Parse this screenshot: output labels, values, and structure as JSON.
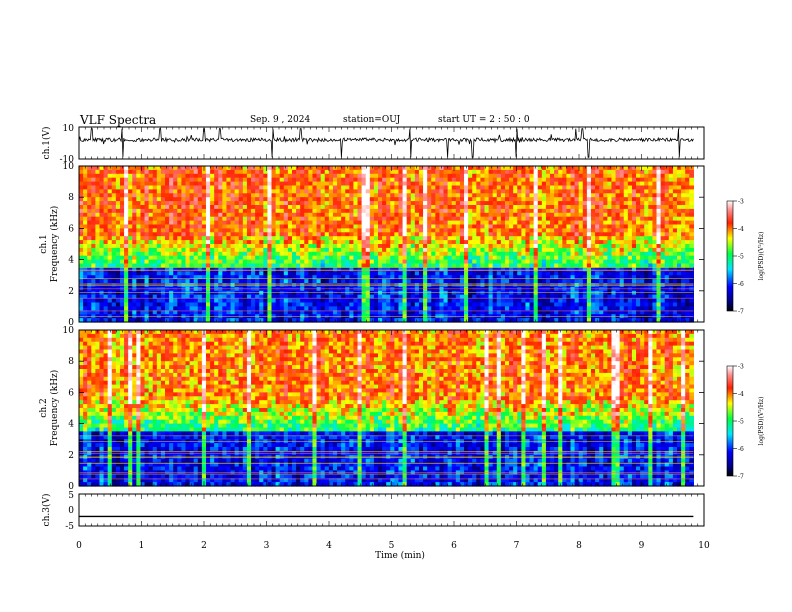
{
  "header": {
    "title": "VLF Spectra",
    "date": "Sep. 9  , 2024",
    "station": "station=OUJ",
    "start": "start  UT =   2 : 50 : 0"
  },
  "chart_data": [
    {
      "type": "line",
      "id": "ch1-waveform",
      "ylabel": "ch.1(V)",
      "ylim": [
        -10,
        10
      ],
      "yticks": [
        "10",
        "-10"
      ],
      "xlim": [
        0,
        10
      ],
      "baseline": 2,
      "spikes_at_min": [
        0.2,
        0.7,
        1.3,
        2.0,
        2.25,
        3.1,
        3.55,
        4.2,
        5.3,
        5.9,
        6.3,
        7.0,
        7.95,
        8.05,
        8.15,
        9.6
      ]
    },
    {
      "type": "heatmap",
      "id": "ch1-spectrogram",
      "ylabel": "ch.1\nFrequency (kHz)",
      "ylim": [
        0,
        10
      ],
      "yticks": [
        "0",
        "2",
        "4",
        "6",
        "8",
        "10"
      ],
      "xlim": [
        0,
        10
      ],
      "data_end_min": 9.83,
      "colorbar": {
        "label": "log(PSD)(V²/Hz)",
        "range": [
          -7,
          -3
        ],
        "ticks": [
          "-3",
          "-4",
          "-5",
          "-6",
          "-7"
        ]
      }
    },
    {
      "type": "heatmap",
      "id": "ch2-spectrogram",
      "ylabel": "ch.2\nFrequency (kHz)",
      "ylim": [
        0,
        10
      ],
      "yticks": [
        "0",
        "2",
        "4",
        "6",
        "8",
        "10"
      ],
      "xlim": [
        0,
        10
      ],
      "data_end_min": 9.83,
      "colorbar": {
        "label": "log(PSD)(V²/Hz)",
        "range": [
          -7,
          -3
        ],
        "ticks": [
          "-3",
          "-4",
          "-5",
          "-6",
          "-7"
        ]
      }
    },
    {
      "type": "line",
      "id": "ch3-waveform",
      "ylabel": "ch.3(V)",
      "ylim": [
        -5,
        5
      ],
      "yticks": [
        "5",
        "0",
        "-5"
      ],
      "xlim": [
        0,
        10
      ],
      "constant_value": -2
    }
  ],
  "xaxis": {
    "label": "Time (min)",
    "ticks": [
      "0",
      "1",
      "2",
      "3",
      "4",
      "5",
      "6",
      "7",
      "8",
      "9",
      "10"
    ]
  }
}
